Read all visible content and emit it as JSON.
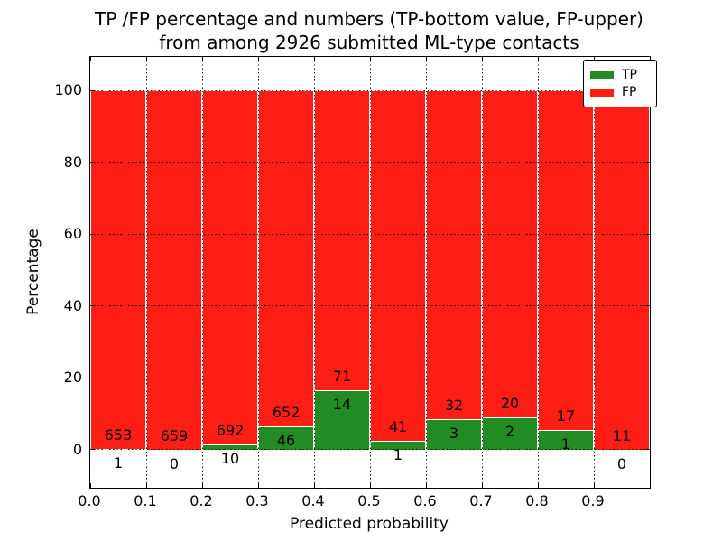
{
  "chart": {
    "title_line1": "TP /FP percentage and numbers (TP-bottom value, FP-upper)",
    "title_line2": "from among 2926 submitted ML-type contacts",
    "xlabel": "Predicted probability",
    "ylabel": "Percentage"
  },
  "chart_data": {
    "type": "bar",
    "variant": "stacked-percentage-histogram",
    "title": "TP /FP percentage and numbers (TP-bottom value, FP-upper) from among 2926 submitted ML-type contacts",
    "xlabel": "Predicted probability",
    "ylabel": "Percentage",
    "total_contacts": 2926,
    "bin_edges": [
      0.0,
      0.1,
      0.2,
      0.3,
      0.4,
      0.5,
      0.6,
      0.7,
      0.8,
      0.9,
      1.0
    ],
    "x_tick_labels": [
      "0.0",
      "0.1",
      "0.2",
      "0.3",
      "0.4",
      "0.5",
      "0.6",
      "0.7",
      "0.8",
      "0.9"
    ],
    "y_ticks": [
      0,
      20,
      40,
      60,
      80,
      100
    ],
    "y_tick_labels": [
      "0",
      "20",
      "40",
      "60",
      "80",
      "100"
    ],
    "xlim": [
      0.0,
      1.0
    ],
    "ylim": [
      -10.6,
      109.4
    ],
    "grid": {
      "style": "dotted",
      "color": "#000000",
      "above_bars": true
    },
    "series": [
      {
        "name": "TP",
        "counts": [
          1,
          0,
          10,
          46,
          14,
          1,
          3,
          2,
          1,
          0
        ],
        "color": "#228b22"
      },
      {
        "name": "FP",
        "counts": [
          653,
          659,
          692,
          652,
          71,
          41,
          32,
          20,
          17,
          11
        ],
        "color": "#ff1e15"
      }
    ],
    "tp_percent_of_bin": [
      0.15,
      0.0,
      1.42,
      6.59,
      16.47,
      2.38,
      8.57,
      9.09,
      5.56,
      0.0
    ],
    "fp_percent_of_bin": [
      99.85,
      100.0,
      98.58,
      93.41,
      83.53,
      97.62,
      91.43,
      90.91,
      94.44,
      100.0
    ],
    "bar_edge_color": "#ffffff",
    "legend": {
      "position": "upper right",
      "entries": [
        {
          "label": "TP",
          "color": "#228b22"
        },
        {
          "label": "FP",
          "color": "#ff1e15"
        }
      ]
    }
  }
}
